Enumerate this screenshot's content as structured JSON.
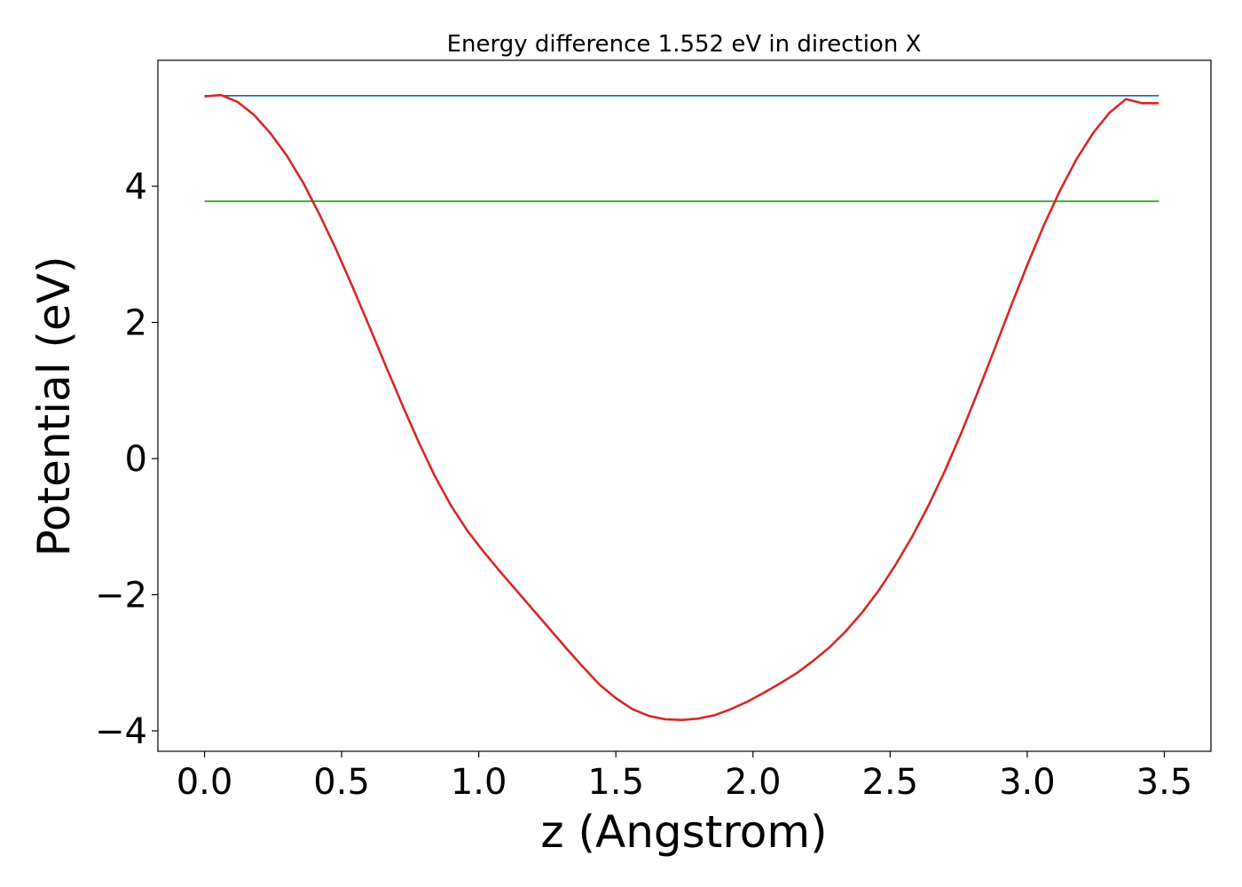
{
  "chart_data": {
    "type": "line",
    "title": "Energy difference 1.552 eV in direction X",
    "xlabel": "z (Angstrom)",
    "ylabel": "Potential (eV)",
    "xlim": [
      -0.17,
      3.67
    ],
    "ylim": [
      -4.3,
      5.85
    ],
    "xticks": [
      0.0,
      0.5,
      1.0,
      1.5,
      2.0,
      2.5,
      3.0,
      3.5
    ],
    "xtick_labels": [
      "0.0",
      "0.5",
      "1.0",
      "1.5",
      "2.0",
      "2.5",
      "3.0",
      "3.5"
    ],
    "yticks": [
      -4,
      -2,
      0,
      2,
      4
    ],
    "ytick_labels": [
      "−4",
      "−2",
      "0",
      "2",
      "4"
    ],
    "grid": false,
    "series": [
      {
        "color": "#d62728",
        "x": [
          0.0,
          0.06,
          0.12,
          0.18,
          0.24,
          0.3,
          0.36,
          0.42,
          0.48,
          0.54,
          0.6,
          0.66,
          0.72,
          0.78,
          0.84,
          0.9,
          0.96,
          1.02,
          1.08,
          1.14,
          1.2,
          1.26,
          1.32,
          1.38,
          1.44,
          1.5,
          1.56,
          1.62,
          1.68,
          1.74,
          1.8,
          1.86,
          1.92,
          1.98,
          2.04,
          2.1,
          2.16,
          2.22,
          2.28,
          2.34,
          2.4,
          2.46,
          2.52,
          2.58,
          2.64,
          2.7,
          2.76,
          2.82,
          2.88,
          2.94,
          3.0,
          3.06,
          3.12,
          3.18,
          3.24,
          3.3,
          3.36,
          3.42,
          3.48
        ],
        "y": [
          5.32,
          5.34,
          5.24,
          5.05,
          4.78,
          4.45,
          4.05,
          3.58,
          3.07,
          2.52,
          1.95,
          1.37,
          0.8,
          0.25,
          -0.26,
          -0.7,
          -1.07,
          -1.38,
          -1.67,
          -1.95,
          -2.23,
          -2.51,
          -2.79,
          -3.06,
          -3.32,
          -3.52,
          -3.68,
          -3.78,
          -3.83,
          -3.84,
          -3.82,
          -3.77,
          -3.68,
          -3.57,
          -3.44,
          -3.3,
          -3.15,
          -2.97,
          -2.77,
          -2.53,
          -2.25,
          -1.93,
          -1.56,
          -1.15,
          -0.69,
          -0.18,
          0.38,
          0.98,
          1.6,
          2.23,
          2.84,
          3.42,
          3.94,
          4.4,
          4.78,
          5.08,
          5.28,
          5.22,
          5.22
        ]
      },
      {
        "color": "#1f77b4",
        "x": [
          0.0,
          3.48
        ],
        "y": [
          5.33,
          5.33
        ]
      },
      {
        "color": "#2ca02c",
        "x": [
          0.0,
          3.48
        ],
        "y": [
          3.78,
          3.78
        ]
      }
    ]
  }
}
